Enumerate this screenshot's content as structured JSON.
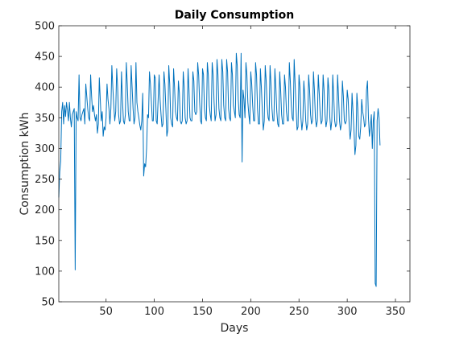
{
  "chart_data": {
    "type": "line",
    "title": "Daily Consumption",
    "xlabel": "Days",
    "ylabel": "Consumption kWh",
    "xlim": [
      1,
      365
    ],
    "ylim": [
      50,
      500
    ],
    "xticks": [
      50,
      100,
      150,
      200,
      250,
      300,
      350
    ],
    "yticks": [
      50,
      100,
      150,
      200,
      250,
      300,
      350,
      400,
      450,
      500
    ],
    "grid": false,
    "line_color": "#0072BD",
    "series": [
      {
        "values": [
          220,
          262,
          280,
          360,
          375,
          340,
          370,
          352,
          375,
          362,
          345,
          375,
          350,
          335,
          355,
          360,
          365,
          102,
          360,
          350,
          345,
          420,
          350,
          345,
          355,
          360,
          365,
          340,
          405,
          385,
          365,
          350,
          345,
          420,
          385,
          360,
          370,
          355,
          345,
          355,
          325,
          340,
          415,
          380,
          345,
          360,
          320,
          335,
          330,
          350,
          405,
          380,
          365,
          340,
          365,
          435,
          400,
          370,
          345,
          360,
          430,
          400,
          355,
          340,
          345,
          425,
          380,
          345,
          340,
          355,
          440,
          405,
          360,
          345,
          345,
          435,
          400,
          365,
          340,
          350,
          440,
          375,
          360,
          350,
          338,
          330,
          345,
          390,
          255,
          275,
          270,
          300,
          355,
          350,
          425,
          405,
          375,
          345,
          345,
          420,
          415,
          345,
          340,
          380,
          420,
          380,
          355,
          335,
          340,
          425,
          405,
          365,
          320,
          330,
          435,
          405,
          350,
          340,
          335,
          430,
          400,
          360,
          350,
          345,
          410,
          390,
          345,
          340,
          345,
          425,
          400,
          350,
          340,
          345,
          430,
          395,
          350,
          345,
          345,
          425,
          410,
          360,
          355,
          360,
          440,
          420,
          375,
          345,
          340,
          430,
          420,
          365,
          350,
          345,
          440,
          420,
          370,
          355,
          345,
          440,
          420,
          375,
          345,
          355,
          445,
          420,
          365,
          350,
          345,
          445,
          425,
          370,
          350,
          345,
          445,
          425,
          365,
          350,
          345,
          440,
          420,
          370,
          360,
          350,
          455,
          435,
          380,
          355,
          350,
          455,
          278,
          395,
          380,
          350,
          440,
          420,
          375,
          355,
          340,
          425,
          405,
          370,
          345,
          345,
          440,
          420,
          365,
          340,
          340,
          430,
          400,
          360,
          330,
          345,
          435,
          410,
          370,
          350,
          345,
          435,
          405,
          365,
          345,
          345,
          430,
          400,
          360,
          340,
          335,
          425,
          395,
          355,
          340,
          340,
          420,
          400,
          360,
          345,
          345,
          440,
          410,
          370,
          350,
          345,
          445,
          405,
          365,
          330,
          335,
          420,
          400,
          350,
          330,
          345,
          410,
          385,
          345,
          330,
          340,
          420,
          395,
          355,
          340,
          345,
          425,
          395,
          350,
          335,
          345,
          420,
          390,
          355,
          340,
          345,
          420,
          395,
          355,
          335,
          345,
          415,
          395,
          350,
          330,
          345,
          420,
          385,
          345,
          335,
          340,
          420,
          385,
          345,
          330,
          340,
          410,
          385,
          345,
          340,
          345,
          395,
          380,
          340,
          315,
          330,
          390,
          360,
          330,
          290,
          305,
          390,
          365,
          320,
          315,
          335,
          380,
          360,
          350,
          335,
          340,
          395,
          410,
          350,
          320,
          335,
          355,
          300,
          345,
          360,
          80,
          75,
          345,
          365,
          350,
          305
        ]
      }
    ]
  }
}
